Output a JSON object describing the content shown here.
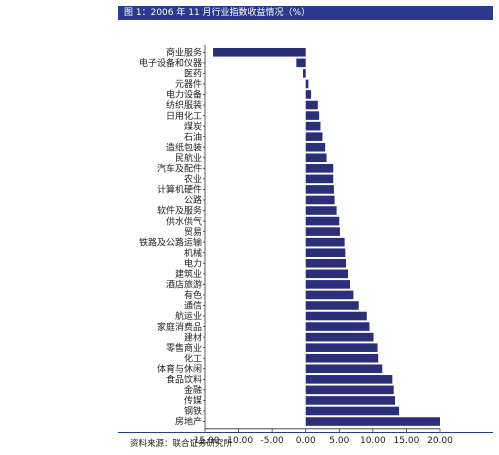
{
  "figure_title": "图 1：2006 年 11 月行业指数收益情况（%）",
  "source_note": "资料来源：联合证券研究所",
  "colors": {
    "bar": "#2b2f7a",
    "axis": "#333333",
    "title_bg": "#2b3a8c"
  },
  "chart_data": {
    "type": "bar",
    "orientation": "horizontal",
    "title": "",
    "xlabel": "",
    "ylabel": "",
    "xlim": [
      -15,
      20
    ],
    "xticks": [
      "-15.00",
      "-10.00",
      "-5.00",
      "0.00",
      "5.00",
      "10.00",
      "15.00",
      "20.00"
    ],
    "grid": false,
    "categories": [
      "商业服务",
      "电子设备和仪器",
      "医药",
      "元器件",
      "电力设备",
      "纺织服装",
      "日用化工",
      "煤炭",
      "石油",
      "造纸包装",
      "民航业",
      "汽车及配件",
      "农业",
      "计算机硬件",
      "公路",
      "软件及服务",
      "供水供气",
      "贸易",
      "铁路及公路运输",
      "机械",
      "电力",
      "建筑业",
      "酒店旅游",
      "有色",
      "通信",
      "航运业",
      "家庭消费品",
      "建材",
      "零售商业",
      "化工",
      "体育与休闲",
      "食品饮料",
      "金融",
      "传媒",
      "钢铁",
      "房地产"
    ],
    "values": [
      -13.8,
      -1.4,
      -0.4,
      0.4,
      0.8,
      1.8,
      2.0,
      2.2,
      2.5,
      2.9,
      3.1,
      4.1,
      4.1,
      4.2,
      4.3,
      4.6,
      5.0,
      5.1,
      5.8,
      5.9,
      6.0,
      6.3,
      6.6,
      7.1,
      7.9,
      9.1,
      9.5,
      10.1,
      10.7,
      10.8,
      11.4,
      12.9,
      13.1,
      13.3,
      13.9,
      20.0
    ]
  }
}
